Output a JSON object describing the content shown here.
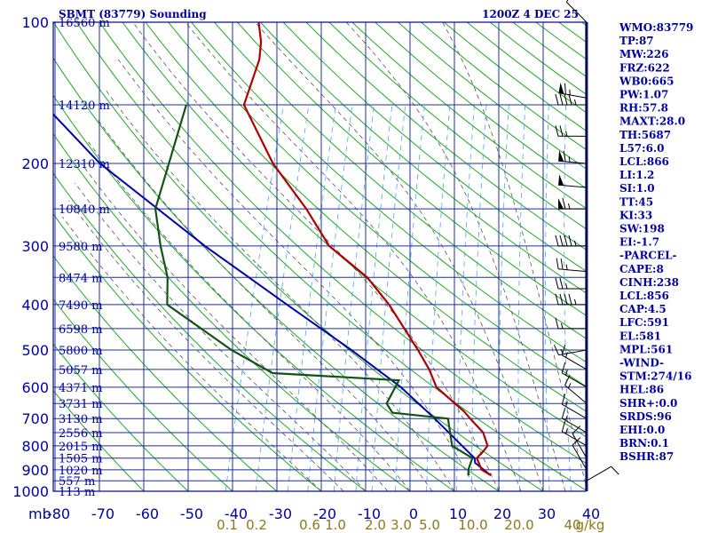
{
  "header": {
    "station": "SBMT (83779) Sounding",
    "time": "1200Z  4 DEC 25"
  },
  "colors": {
    "frame": "#0000a0",
    "grid": "#1f2f9f",
    "dry_adiabat": "#1faa1f",
    "moist_adiabat": "#555555",
    "mixing_ratio": "#4aa8e8",
    "temperature": "#b00000",
    "dewpoint": "#145214",
    "parcel": "#0000b0",
    "labels": "#0000a0",
    "mixing_labels": "#8a7a1a",
    "wind": "#000000"
  },
  "chart_data": {
    "type": "skew-t",
    "xlabel": "mb",
    "pressure_levels": [
      {
        "p": "100",
        "height": "16560 m"
      },
      {
        "p": "",
        "height": "14120 m"
      },
      {
        "p": "200",
        "height": "12310 m"
      },
      {
        "p": "",
        "height": "10840 m"
      },
      {
        "p": "300",
        "height": "9580 m"
      },
      {
        "p": "",
        "height": "8474 m"
      },
      {
        "p": "400",
        "height": "7490 m"
      },
      {
        "p": "",
        "height": "6598 m"
      },
      {
        "p": "500",
        "height": "5800 m"
      },
      {
        "p": "",
        "height": "5057 m"
      },
      {
        "p": "600",
        "height": "4371 m"
      },
      {
        "p": "",
        "height": "3731 m"
      },
      {
        "p": "700",
        "height": "3130 m"
      },
      {
        "p": "",
        "height": "2556 m"
      },
      {
        "p": "800",
        "height": "2015 m"
      },
      {
        "p": "",
        "height": "1505 m"
      },
      {
        "p": "900",
        "height": "1020 m"
      },
      {
        "p": "",
        "height": "557 m"
      },
      {
        "p": "1000",
        "height": "113 m"
      }
    ],
    "temperature_ticks": [
      "-80",
      "-70",
      "-60",
      "-50",
      "-40",
      "-30",
      "-20",
      "-10",
      "0",
      "10",
      "20",
      "30",
      "40"
    ],
    "mixing_ratio_ticks": [
      "0.1",
      "0.2",
      "0.6",
      "1.0",
      "2.0",
      "3.0",
      "5.0",
      "10.0",
      "20.0",
      "40",
      "g/kg"
    ],
    "temperature_profile": [
      {
        "p": 925,
        "t": 17.0
      },
      {
        "p": 900,
        "t": 14.5
      },
      {
        "p": 850,
        "t": 12.5
      },
      {
        "p": 820,
        "t": 13.5
      },
      {
        "p": 800,
        "t": 14.0
      },
      {
        "p": 750,
        "t": 12.0
      },
      {
        "p": 700,
        "t": 8.0
      },
      {
        "p": 675,
        "t": 6.0
      },
      {
        "p": 600,
        "t": -2.0
      },
      {
        "p": 550,
        "t": -5.0
      },
      {
        "p": 500,
        "t": -9.0
      },
      {
        "p": 400,
        "t": -19.0
      },
      {
        "p": 350,
        "t": -26.0
      },
      {
        "p": 300,
        "t": -37.0
      },
      {
        "p": 250,
        "t": -45.0
      },
      {
        "p": 200,
        "t": -56.0
      },
      {
        "p": 150,
        "t": -67.0
      },
      {
        "p": 120,
        "t": -67.0
      },
      {
        "p": 110,
        "t": -68.0
      },
      {
        "p": 100,
        "t": -70.0
      }
    ],
    "dewpoint_profile": [
      {
        "p": 925,
        "t": 12.0
      },
      {
        "p": 900,
        "t": 11.5
      },
      {
        "p": 850,
        "t": 11.5
      },
      {
        "p": 800,
        "t": 6.0
      },
      {
        "p": 700,
        "t": 3.0
      },
      {
        "p": 680,
        "t": -10.0
      },
      {
        "p": 650,
        "t": -12.0
      },
      {
        "p": 580,
        "t": -11.0
      },
      {
        "p": 560,
        "t": -40.0
      },
      {
        "p": 500,
        "t": -51.0
      },
      {
        "p": 400,
        "t": -69.0
      },
      {
        "p": 350,
        "t": -71.0
      },
      {
        "p": 300,
        "t": -75.0
      },
      {
        "p": 250,
        "t": -79.0
      },
      {
        "p": 150,
        "t": -80.0
      }
    ],
    "parcel_profile": [
      {
        "p": 925,
        "t": 17.0
      },
      {
        "p": 870,
        "t": 12.5
      },
      {
        "p": 850,
        "t": 12.0
      },
      {
        "p": 700,
        "t": 0.0
      },
      {
        "p": 600,
        "t": -10.0
      },
      {
        "p": 500,
        "t": -24.0
      },
      {
        "p": 400,
        "t": -42.0
      },
      {
        "p": 300,
        "t": -65.0
      },
      {
        "p": 200,
        "t": -95.0
      },
      {
        "p": 150,
        "t": -112.0
      }
    ],
    "wind_barbs": [
      {
        "p": 100,
        "dir": 315,
        "kt": 10
      },
      {
        "p": 145,
        "dir": 280,
        "kt": 65
      },
      {
        "p": 150,
        "dir": 270,
        "kt": 45
      },
      {
        "p": 175,
        "dir": 270,
        "kt": 25
      },
      {
        "p": 200,
        "dir": 275,
        "kt": 65
      },
      {
        "p": 225,
        "dir": 275,
        "kt": 50
      },
      {
        "p": 250,
        "dir": 270,
        "kt": 65
      },
      {
        "p": 300,
        "dir": 270,
        "kt": 45
      },
      {
        "p": 340,
        "dir": 275,
        "kt": 25
      },
      {
        "p": 370,
        "dir": 270,
        "kt": 25
      },
      {
        "p": 400,
        "dir": 270,
        "kt": 45
      },
      {
        "p": 450,
        "dir": 270,
        "kt": 15
      },
      {
        "p": 500,
        "dir": 260,
        "kt": 15
      },
      {
        "p": 550,
        "dir": 300,
        "kt": 15
      },
      {
        "p": 600,
        "dir": 300,
        "kt": 15
      },
      {
        "p": 650,
        "dir": 310,
        "kt": 15
      },
      {
        "p": 700,
        "dir": 300,
        "kt": 15
      },
      {
        "p": 750,
        "dir": 300,
        "kt": 15
      },
      {
        "p": 800,
        "dir": 300,
        "kt": 15
      },
      {
        "p": 850,
        "dir": 330,
        "kt": 10
      },
      {
        "p": 900,
        "dir": 330,
        "kt": 10
      },
      {
        "p": 950,
        "dir": 60,
        "kt": 10
      }
    ]
  },
  "indices": [
    "WMO:83779",
    "TP:87",
    "MW:226",
    "FRZ:622",
    "WB0:665",
    "PW:1.07",
    "RH:57.8",
    "MAXT:28.0",
    "TH:5687",
    "L57:6.0",
    "LCL:866",
    "LI:1.2",
    "SI:1.0",
    "TT:45",
    "KI:33",
    "SW:198",
    "EI:-1.7",
    "-PARCEL-",
    "CAPE:8",
    "CINH:238",
    "LCL:856",
    "CAP:4.5",
    "LFC:591",
    "EL:581",
    "MPL:561",
    "-WIND-",
    "STM:274/16",
    "HEL:86",
    "SHR+:0.0",
    "SRDS:96",
    "EHI:0.0",
    "BRN:0.1",
    "BSHR:87"
  ]
}
